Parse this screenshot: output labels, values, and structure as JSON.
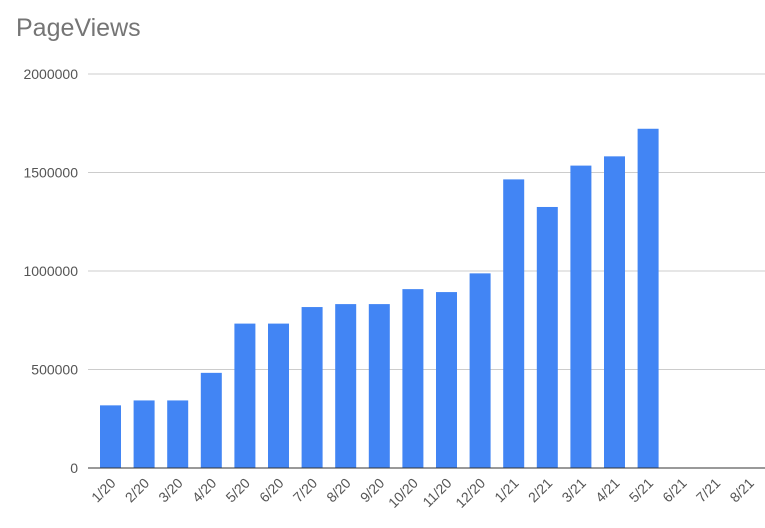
{
  "chart_data": {
    "type": "bar",
    "title": "PageViews",
    "xlabel": "",
    "ylabel": "",
    "categories": [
      "1/20",
      "2/20",
      "3/20",
      "4/20",
      "5/20",
      "6/20",
      "7/20",
      "8/20",
      "9/20",
      "10/20",
      "11/20",
      "12/20",
      "1/21",
      "2/21",
      "3/21",
      "4/21",
      "5/21",
      "6/21",
      "7/21",
      "8/21"
    ],
    "series": [
      {
        "values": [
          318000,
          343000,
          343000,
          483000,
          733000,
          733000,
          817000,
          832000,
          832000,
          908000,
          893000,
          988000,
          1465000,
          1325000,
          1535000,
          1582000,
          1722000,
          0,
          0,
          0
        ]
      }
    ],
    "ylim": [
      0,
      2000000
    ],
    "yticks": [
      "0",
      "500000",
      "1000000",
      "1500000",
      "2000000"
    ],
    "grid": true,
    "legend": "none",
    "bar_color": "#4285F4"
  }
}
